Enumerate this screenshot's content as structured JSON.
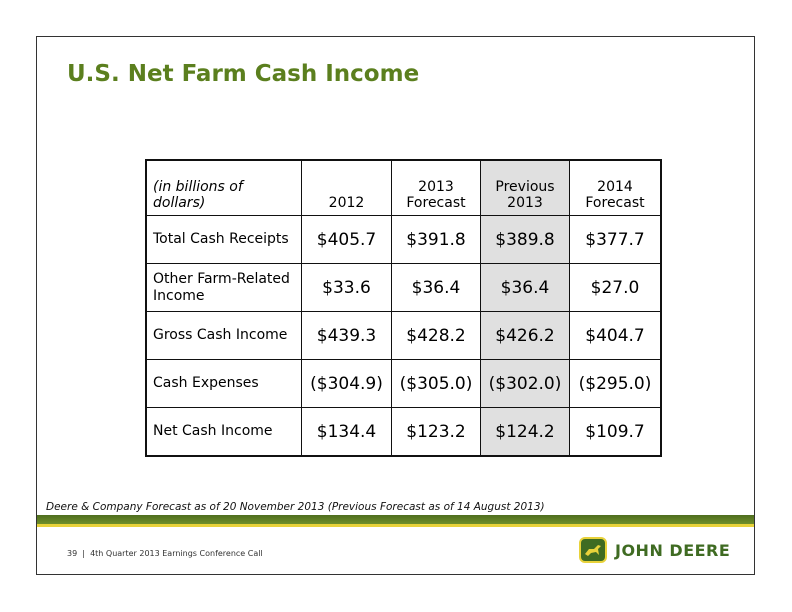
{
  "header": {
    "title": "U.S. Net Farm Cash Income"
  },
  "table": {
    "columns": [
      "(in billions of dollars)",
      "2012",
      "2013 Forecast",
      "Previous 2013",
      "2014 Forecast"
    ],
    "rows": [
      [
        "Total Cash Receipts",
        "$405.7",
        "$391.8",
        "$389.8",
        "$377.7"
      ],
      [
        "Other Farm-Related Income",
        "$33.6",
        "$36.4",
        "$36.4",
        "$27.0"
      ],
      [
        "Gross Cash Income",
        "$439.3",
        "$428.2",
        "$426.2",
        "$404.7"
      ],
      [
        "Cash Expenses",
        "($304.9)",
        "($305.0)",
        "($302.0)",
        "($295.0)"
      ],
      [
        "Net Cash Income",
        "$134.4",
        "$123.2",
        "$124.2",
        "$109.7"
      ]
    ]
  },
  "footnote": "Deere & Company Forecast as of 20 November 2013 (Previous Forecast as of 14 August 2013)",
  "footer": {
    "page": "39",
    "text": "4th Quarter 2013 Earnings Conference Call",
    "logo": "JOHN DEERE"
  }
}
